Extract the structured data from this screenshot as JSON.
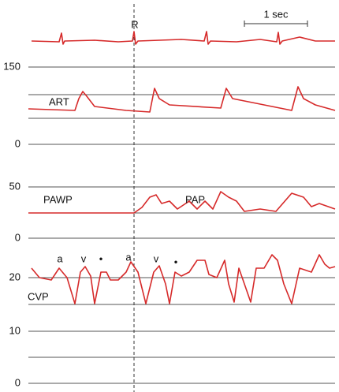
{
  "marker": "R",
  "scale": "1 sec",
  "axis_labels": [
    "150",
    "0",
    "50",
    "0",
    "20",
    "10",
    "0"
  ],
  "trace_labels": {
    "art": "ART",
    "pawp": "PAWP",
    "pap": "PAP",
    "cvp": "CVP"
  },
  "wave_labels": [
    "a",
    "v",
    "•",
    "a",
    "v",
    "•"
  ]
}
